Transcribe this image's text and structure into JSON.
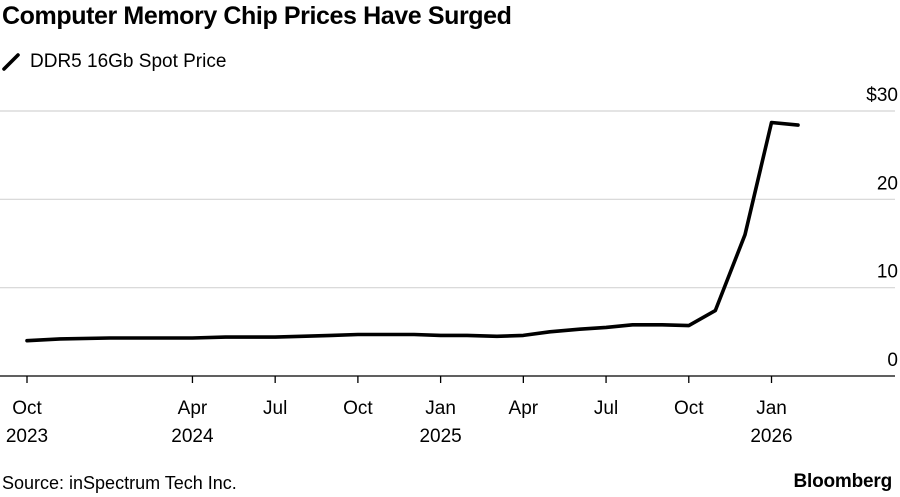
{
  "chart_data": {
    "type": "line",
    "title": "Computer Memory Chip Prices Have Surged",
    "legend": "DDR5 16Gb Spot Price",
    "legend_position": "top-left",
    "xlabel": "",
    "ylabel": "",
    "ylim": [
      0,
      30
    ],
    "yticks": [
      {
        "value": 30,
        "label": "$30"
      },
      {
        "value": 20,
        "label": "20"
      },
      {
        "value": 10,
        "label": "10"
      },
      {
        "value": 0,
        "label": "0"
      }
    ],
    "xlim": [
      2023.75,
      2026.21
    ],
    "xticks": [
      {
        "value": 2023.75,
        "line1": "Oct",
        "line2": "2023"
      },
      {
        "value": 2024.25,
        "line1": "Apr",
        "line2": "2024"
      },
      {
        "value": 2024.5,
        "line1": "Jul",
        "line2": ""
      },
      {
        "value": 2024.75,
        "line1": "Oct",
        "line2": ""
      },
      {
        "value": 2025.0,
        "line1": "Jan",
        "line2": "2025"
      },
      {
        "value": 2025.25,
        "line1": "Apr",
        "line2": ""
      },
      {
        "value": 2025.5,
        "line1": "Jul",
        "line2": ""
      },
      {
        "value": 2025.75,
        "line1": "Oct",
        "line2": ""
      },
      {
        "value": 2026.0,
        "line1": "Jan",
        "line2": "2026"
      }
    ],
    "grid": true,
    "series": [
      {
        "name": "DDR5 16Gb Spot Price",
        "color": "#000000",
        "x": [
          2023.75,
          2023.85,
          2024.0,
          2024.1,
          2024.25,
          2024.35,
          2024.5,
          2024.58,
          2024.67,
          2024.75,
          2024.83,
          2024.92,
          2025.0,
          2025.08,
          2025.17,
          2025.25,
          2025.33,
          2025.42,
          2025.5,
          2025.58,
          2025.67,
          2025.75,
          2025.83,
          2025.92,
          2026.0,
          2026.08
        ],
        "values": [
          4.0,
          4.2,
          4.3,
          4.3,
          4.3,
          4.4,
          4.4,
          4.5,
          4.6,
          4.7,
          4.7,
          4.7,
          4.6,
          4.6,
          4.5,
          4.6,
          5.0,
          5.3,
          5.5,
          5.8,
          5.8,
          5.7,
          7.4,
          16.0,
          28.7,
          28.4
        ]
      }
    ]
  },
  "footer": {
    "source": "Source: inSpectrum Tech Inc.",
    "brand": "Bloomberg"
  }
}
